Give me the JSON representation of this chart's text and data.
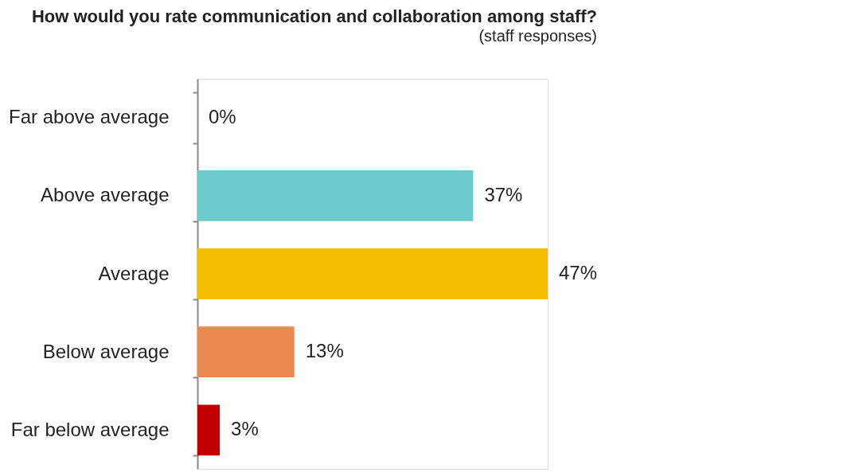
{
  "chart_data": {
    "type": "bar",
    "orientation": "horizontal",
    "title": "How would you rate communication and collaboration among staff?",
    "subtitle": "(staff responses)",
    "categories": [
      "Far above average",
      "Above average",
      "Average",
      "Below average",
      "Far below average"
    ],
    "values": [
      0,
      37,
      47,
      13,
      3
    ],
    "colors": [
      null,
      "#6cc9cc",
      "#f6be00",
      "#e8894f",
      "#c00000"
    ],
    "value_labels": [
      "0%",
      "37%",
      "47%",
      "13%",
      "3%"
    ]
  }
}
